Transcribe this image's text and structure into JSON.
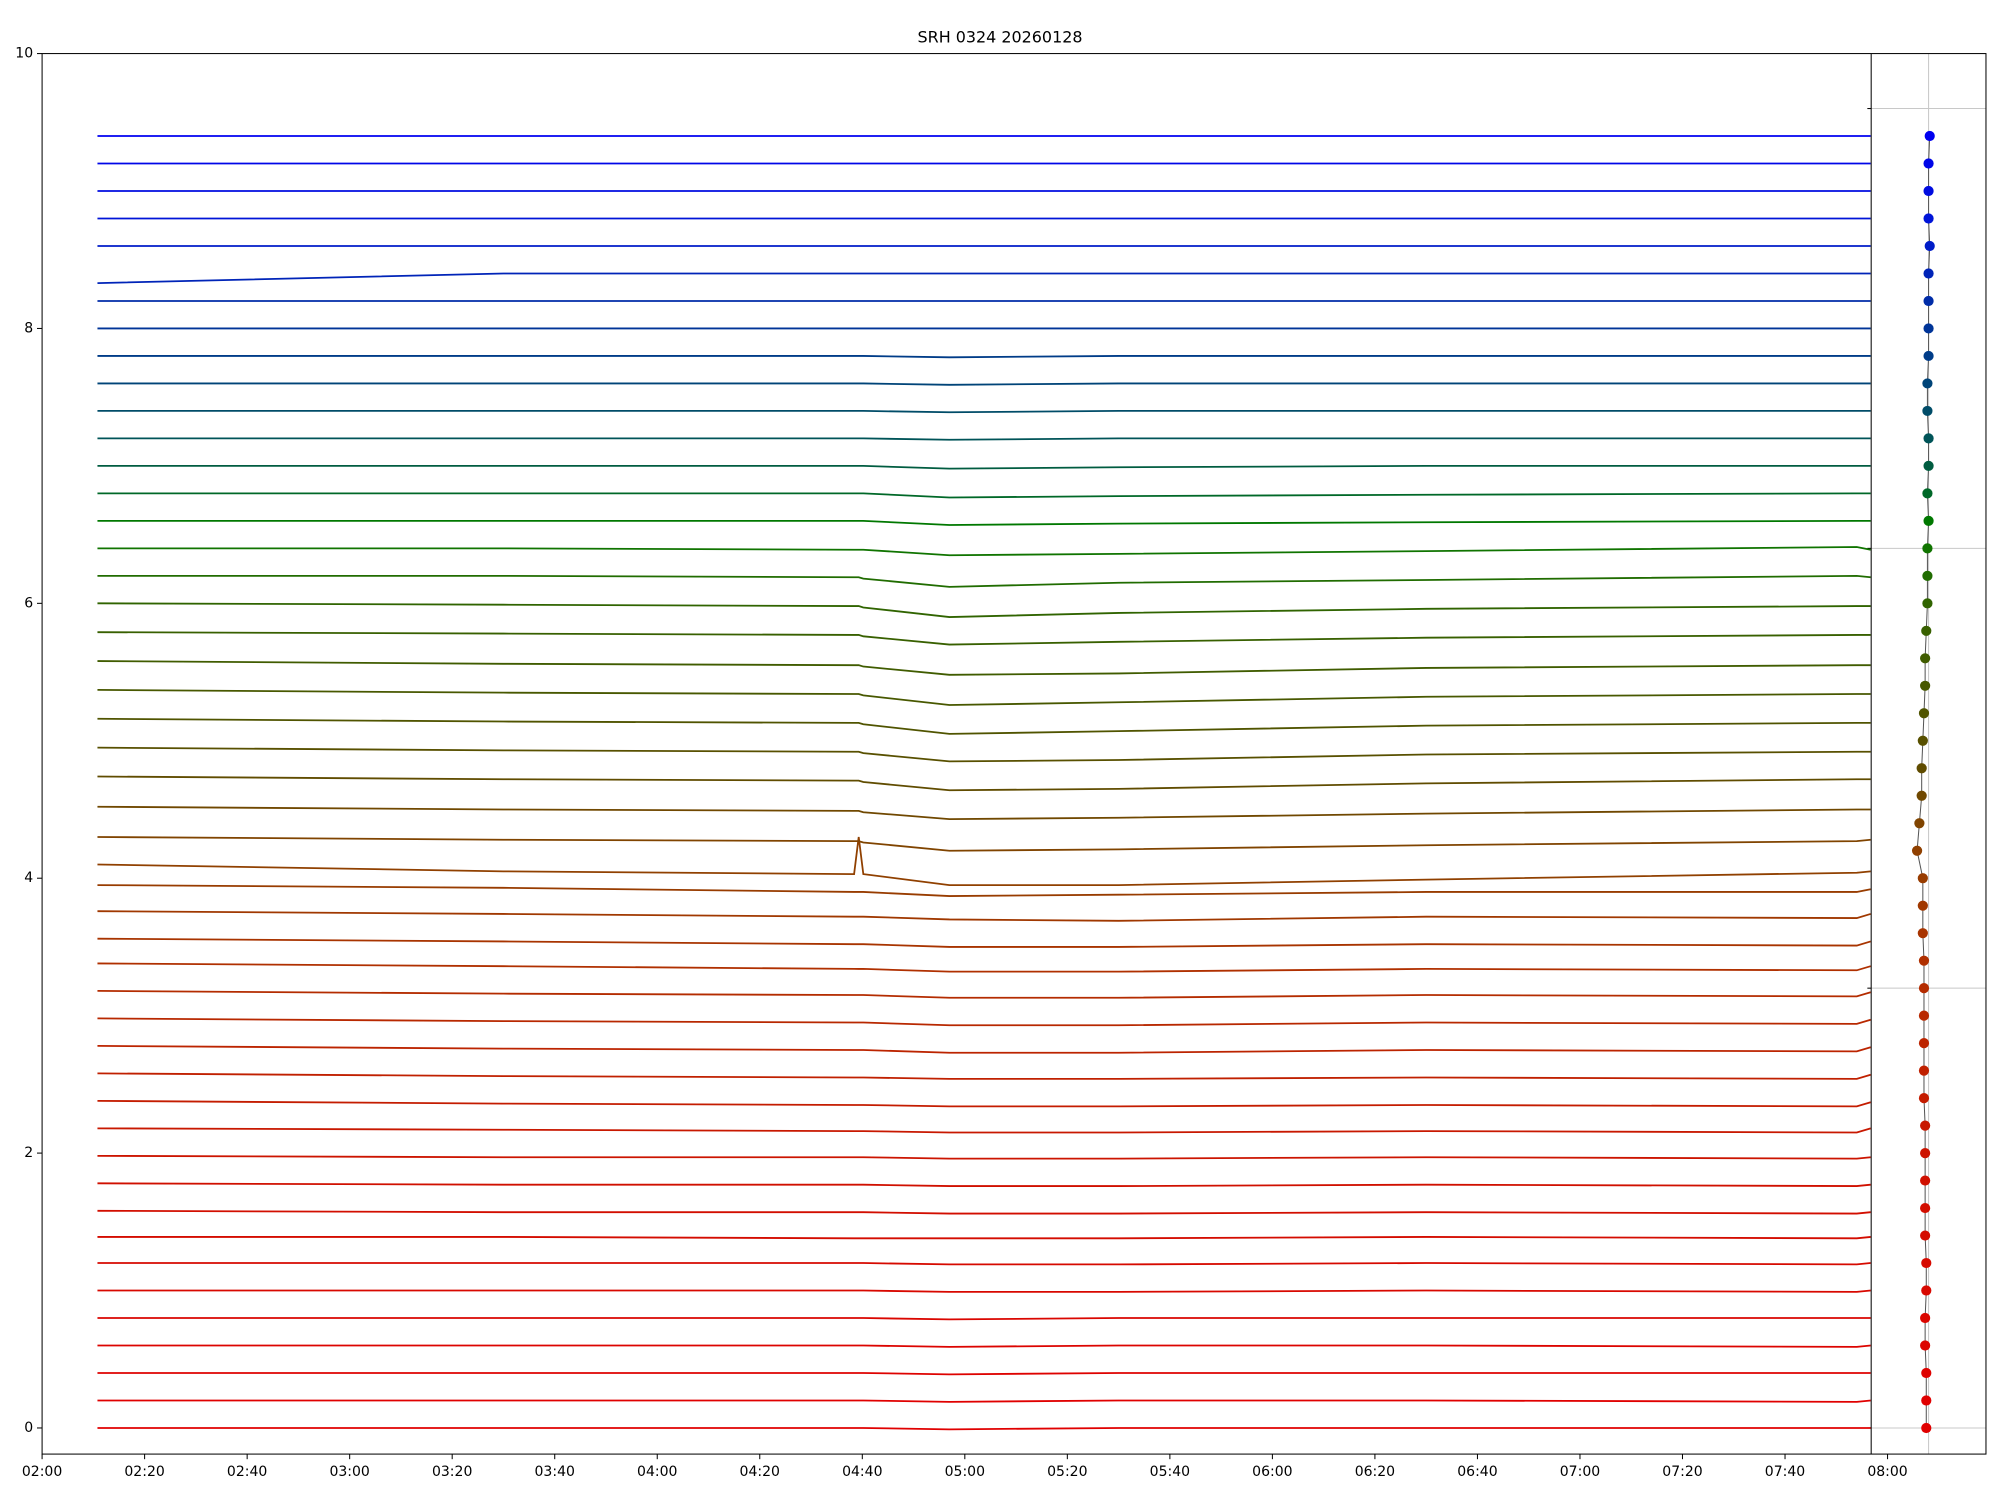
{
  "chart_data": [
    {
      "type": "line",
      "title": "SRH 0324 20260128",
      "x": [
        2.18,
        3.5,
        4.64,
        4.655,
        4.67,
        4.95,
        5.5,
        6.5,
        7.9,
        7.945
      ],
      "xlim": [
        2,
        8.32
      ],
      "xticks": [
        {
          "value": 2,
          "label": "02:00"
        },
        {
          "value": 2.3333,
          "label": "02:20"
        },
        {
          "value": 2.6667,
          "label": "02:40"
        },
        {
          "value": 3,
          "label": "03:00"
        },
        {
          "value": 3.3333,
          "label": "03:20"
        },
        {
          "value": 3.6667,
          "label": "03:40"
        },
        {
          "value": 4,
          "label": "04:00"
        },
        {
          "value": 4.3333,
          "label": "04:20"
        },
        {
          "value": 4.6667,
          "label": "04:40"
        },
        {
          "value": 5,
          "label": "05:00"
        },
        {
          "value": 5.3333,
          "label": "05:20"
        },
        {
          "value": 5.6667,
          "label": "05:40"
        },
        {
          "value": 6,
          "label": "06:00"
        },
        {
          "value": 6.3333,
          "label": "06:20"
        },
        {
          "value": 6.6667,
          "label": "06:40"
        },
        {
          "value": 7,
          "label": "07:00"
        },
        {
          "value": 7.3333,
          "label": "07:20"
        },
        {
          "value": 7.6667,
          "label": "07:40"
        },
        {
          "value": 8,
          "label": "08:00"
        }
      ],
      "ylim": [
        -0.19,
        10
      ],
      "yticks": [
        0,
        2,
        4,
        6,
        8,
        10
      ],
      "series": [
        {
          "color": "#e00000",
          "values": [
            0.0,
            0.0,
            0.0,
            0.0,
            0.0,
            -0.01,
            0.0,
            0.0,
            0.0,
            0.0
          ]
        },
        {
          "color": "#e00000",
          "values": [
            0.2,
            0.2,
            0.2,
            0.2,
            0.2,
            0.19,
            0.2,
            0.2,
            0.19,
            0.2
          ]
        },
        {
          "color": "#de0200",
          "values": [
            0.4,
            0.4,
            0.4,
            0.4,
            0.4,
            0.39,
            0.4,
            0.4,
            0.4,
            0.4
          ]
        },
        {
          "color": "#dc0400",
          "values": [
            0.6,
            0.6,
            0.6,
            0.6,
            0.6,
            0.59,
            0.6,
            0.6,
            0.59,
            0.6
          ]
        },
        {
          "color": "#da0600",
          "values": [
            0.8,
            0.8,
            0.8,
            0.8,
            0.8,
            0.79,
            0.8,
            0.8,
            0.8,
            0.8
          ]
        },
        {
          "color": "#d80800",
          "values": [
            1.0,
            1.0,
            1.0,
            1.0,
            1.0,
            0.99,
            0.99,
            1.0,
            0.99,
            1.0
          ]
        },
        {
          "color": "#d60a00",
          "values": [
            1.2,
            1.2,
            1.2,
            1.2,
            1.2,
            1.19,
            1.19,
            1.2,
            1.19,
            1.2
          ]
        },
        {
          "color": "#d40c00",
          "values": [
            1.39,
            1.39,
            1.38,
            1.38,
            1.38,
            1.38,
            1.38,
            1.39,
            1.38,
            1.39
          ]
        },
        {
          "color": "#d20e00",
          "values": [
            1.58,
            1.57,
            1.57,
            1.57,
            1.57,
            1.56,
            1.56,
            1.57,
            1.56,
            1.57
          ]
        },
        {
          "color": "#d01000",
          "values": [
            1.78,
            1.77,
            1.77,
            1.77,
            1.77,
            1.76,
            1.76,
            1.77,
            1.76,
            1.77
          ]
        },
        {
          "color": "#cc1400",
          "values": [
            1.98,
            1.97,
            1.97,
            1.97,
            1.97,
            1.96,
            1.96,
            1.97,
            1.96,
            1.97
          ]
        },
        {
          "color": "#c81800",
          "values": [
            2.18,
            2.17,
            2.16,
            2.16,
            2.16,
            2.15,
            2.15,
            2.16,
            2.15,
            2.18
          ]
        },
        {
          "color": "#c41c00",
          "values": [
            2.38,
            2.36,
            2.35,
            2.35,
            2.35,
            2.34,
            2.34,
            2.35,
            2.34,
            2.37
          ]
        },
        {
          "color": "#c02000",
          "values": [
            2.58,
            2.56,
            2.55,
            2.55,
            2.55,
            2.54,
            2.54,
            2.55,
            2.54,
            2.57
          ]
        },
        {
          "color": "#bc2400",
          "values": [
            2.78,
            2.76,
            2.75,
            2.75,
            2.75,
            2.73,
            2.73,
            2.75,
            2.74,
            2.77
          ]
        },
        {
          "color": "#b82800",
          "values": [
            2.98,
            2.96,
            2.95,
            2.95,
            2.95,
            2.93,
            2.93,
            2.95,
            2.94,
            2.97
          ]
        },
        {
          "color": "#b42c00",
          "values": [
            3.18,
            3.16,
            3.15,
            3.15,
            3.15,
            3.13,
            3.13,
            3.15,
            3.14,
            3.17
          ]
        },
        {
          "color": "#b03000",
          "values": [
            3.38,
            3.36,
            3.34,
            3.34,
            3.34,
            3.32,
            3.32,
            3.34,
            3.33,
            3.36
          ]
        },
        {
          "color": "#a83400",
          "values": [
            3.56,
            3.54,
            3.52,
            3.52,
            3.52,
            3.5,
            3.5,
            3.52,
            3.51,
            3.54
          ]
        },
        {
          "color": "#a03800",
          "values": [
            3.76,
            3.74,
            3.72,
            3.72,
            3.72,
            3.7,
            3.69,
            3.72,
            3.71,
            3.74
          ]
        },
        {
          "color": "#983c00",
          "values": [
            3.95,
            3.93,
            3.9,
            3.9,
            3.9,
            3.87,
            3.88,
            3.9,
            3.9,
            3.92
          ]
        },
        {
          "color": "#904000",
          "values": [
            4.1,
            4.05,
            4.03,
            4.3,
            4.03,
            3.95,
            3.95,
            3.99,
            4.04,
            4.05
          ]
        },
        {
          "color": "#804400",
          "values": [
            4.3,
            4.28,
            4.27,
            4.27,
            4.26,
            4.2,
            4.21,
            4.24,
            4.27,
            4.28
          ]
        },
        {
          "color": "#704800",
          "values": [
            4.52,
            4.5,
            4.49,
            4.49,
            4.48,
            4.43,
            4.44,
            4.47,
            4.5,
            4.5
          ]
        },
        {
          "color": "#604c00",
          "values": [
            4.74,
            4.72,
            4.71,
            4.71,
            4.7,
            4.64,
            4.65,
            4.69,
            4.72,
            4.72
          ]
        },
        {
          "color": "#585000",
          "values": [
            4.95,
            4.93,
            4.92,
            4.92,
            4.91,
            4.85,
            4.86,
            4.9,
            4.92,
            4.92
          ]
        },
        {
          "color": "#505400",
          "values": [
            5.16,
            5.14,
            5.13,
            5.13,
            5.12,
            5.05,
            5.07,
            5.11,
            5.13,
            5.13
          ]
        },
        {
          "color": "#485800",
          "values": [
            5.37,
            5.35,
            5.34,
            5.34,
            5.33,
            5.26,
            5.28,
            5.32,
            5.34,
            5.34
          ]
        },
        {
          "color": "#405c00",
          "values": [
            5.58,
            5.56,
            5.55,
            5.55,
            5.54,
            5.48,
            5.49,
            5.53,
            5.55,
            5.55
          ]
        },
        {
          "color": "#386000",
          "values": [
            5.79,
            5.78,
            5.77,
            5.77,
            5.76,
            5.7,
            5.72,
            5.75,
            5.77,
            5.77
          ]
        },
        {
          "color": "#306400",
          "values": [
            6.0,
            5.99,
            5.98,
            5.98,
            5.97,
            5.9,
            5.93,
            5.96,
            5.98,
            5.98
          ]
        },
        {
          "color": "#206c00",
          "values": [
            6.2,
            6.2,
            6.19,
            6.19,
            6.18,
            6.12,
            6.15,
            6.17,
            6.2,
            6.19
          ]
        },
        {
          "color": "#107400",
          "values": [
            6.4,
            6.4,
            6.39,
            6.39,
            6.39,
            6.35,
            6.36,
            6.38,
            6.41,
            6.39
          ]
        },
        {
          "color": "#007800",
          "values": [
            6.6,
            6.6,
            6.6,
            6.6,
            6.6,
            6.57,
            6.58,
            6.59,
            6.6,
            6.6
          ]
        },
        {
          "color": "#006828",
          "values": [
            6.8,
            6.8,
            6.8,
            6.8,
            6.8,
            6.77,
            6.78,
            6.79,
            6.8,
            6.8
          ]
        },
        {
          "color": "#005c40",
          "values": [
            7.0,
            7.0,
            7.0,
            7.0,
            7.0,
            6.98,
            6.99,
            7.0,
            7.0,
            7.0
          ]
        },
        {
          "color": "#005458",
          "values": [
            7.2,
            7.2,
            7.2,
            7.2,
            7.2,
            7.19,
            7.2,
            7.2,
            7.2,
            7.2
          ]
        },
        {
          "color": "#004c68",
          "values": [
            7.4,
            7.4,
            7.4,
            7.4,
            7.4,
            7.39,
            7.4,
            7.4,
            7.4,
            7.4
          ]
        },
        {
          "color": "#004478",
          "values": [
            7.6,
            7.6,
            7.6,
            7.6,
            7.6,
            7.59,
            7.6,
            7.6,
            7.6,
            7.6
          ]
        },
        {
          "color": "#003c88",
          "values": [
            7.8,
            7.8,
            7.8,
            7.8,
            7.8,
            7.79,
            7.8,
            7.8,
            7.8,
            7.8
          ]
        },
        {
          "color": "#003498",
          "values": [
            8.0,
            8.0,
            8.0,
            8.0,
            8.0,
            8.0,
            8.0,
            8.0,
            8.0,
            8.0
          ]
        },
        {
          "color": "#002ca8",
          "values": [
            8.2,
            8.2,
            8.2,
            8.2,
            8.2,
            8.2,
            8.2,
            8.2,
            8.2,
            8.2
          ]
        },
        {
          "color": "#0024b8",
          "values": [
            8.33,
            8.4,
            8.4,
            8.4,
            8.4,
            8.4,
            8.4,
            8.4,
            8.4,
            8.4
          ]
        },
        {
          "color": "#001cc8",
          "values": [
            8.6,
            8.6,
            8.6,
            8.6,
            8.6,
            8.6,
            8.6,
            8.6,
            8.6,
            8.6
          ]
        },
        {
          "color": "#0014d8",
          "values": [
            8.8,
            8.8,
            8.8,
            8.8,
            8.8,
            8.8,
            8.8,
            8.8,
            8.8,
            8.8
          ]
        },
        {
          "color": "#000ce0",
          "values": [
            9.0,
            9.0,
            9.0,
            9.0,
            9.0,
            9.0,
            9.0,
            9.0,
            9.0,
            9.0
          ]
        },
        {
          "color": "#0006e8",
          "values": [
            9.2,
            9.2,
            9.2,
            9.2,
            9.2,
            9.2,
            9.2,
            9.2,
            9.2,
            9.2
          ]
        },
        {
          "color": "#0000f0",
          "values": [
            9.4,
            9.4,
            9.4,
            9.4,
            9.4,
            9.4,
            9.4,
            9.4,
            9.4,
            9.4
          ]
        }
      ]
    },
    {
      "type": "scatter",
      "xlim": [
        0,
        1
      ],
      "xticks": [
        0.5
      ],
      "ylim": [
        -0.19,
        10
      ],
      "yticks": [
        0,
        3.2,
        6.4,
        9.6
      ],
      "x": [
        0.48,
        0.48,
        0.48,
        0.47,
        0.47,
        0.48,
        0.48,
        0.47,
        0.47,
        0.47,
        0.47,
        0.47,
        0.46,
        0.46,
        0.46,
        0.46,
        0.46,
        0.46,
        0.45,
        0.45,
        0.45,
        0.4,
        0.42,
        0.44,
        0.44,
        0.45,
        0.46,
        0.47,
        0.47,
        0.48,
        0.49,
        0.49,
        0.49,
        0.5,
        0.49,
        0.5,
        0.5,
        0.49,
        0.49,
        0.5,
        0.5,
        0.5,
        0.5,
        0.51,
        0.5,
        0.5,
        0.5,
        0.51
      ],
      "y": [
        0,
        0.2,
        0.4,
        0.6,
        0.8,
        1.0,
        1.2,
        1.4,
        1.6,
        1.8,
        2.0,
        2.2,
        2.4,
        2.6,
        2.8,
        3.0,
        3.2,
        3.4,
        3.6,
        3.8,
        4.0,
        4.2,
        4.4,
        4.6,
        4.8,
        5.0,
        5.2,
        5.4,
        5.6,
        5.8,
        6.0,
        6.2,
        6.4,
        6.6,
        6.8,
        7.0,
        7.2,
        7.4,
        7.6,
        7.8,
        8.0,
        8.2,
        8.4,
        8.6,
        8.8,
        9.0,
        9.2,
        9.4
      ]
    }
  ]
}
